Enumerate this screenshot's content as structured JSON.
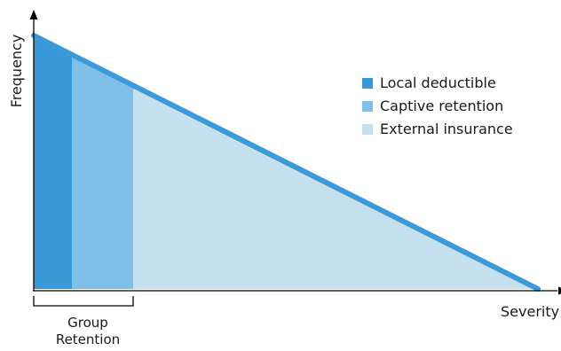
{
  "axes": {
    "y_label": "Frequency",
    "x_label": "Severity"
  },
  "legend": {
    "items": [
      {
        "label": "Local deductible",
        "color": "#3a9ad9"
      },
      {
        "label": "Captive retention",
        "color": "#7fbfe8"
      },
      {
        "label": "External insurance",
        "color": "#c5e0ee"
      }
    ]
  },
  "bracket": {
    "line1": "Group",
    "line2": "Retention"
  },
  "colors": {
    "curve": "#3d9ad8",
    "axis": "#000000"
  }
}
